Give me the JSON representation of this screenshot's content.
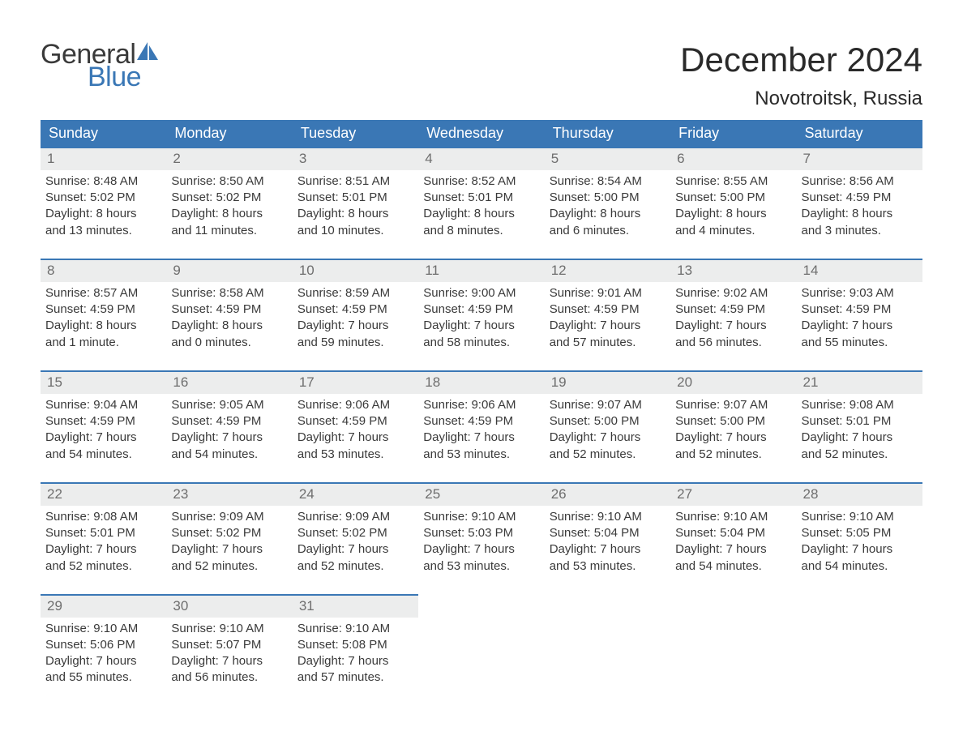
{
  "logo": {
    "top": "General",
    "bottom": "Blue",
    "sail_color": "#3a77b5"
  },
  "title": "December 2024",
  "location": "Novotroitsk, Russia",
  "colors": {
    "header_bg": "#3a77b5",
    "header_text": "#ffffff",
    "daynum_bg": "#eceded",
    "daynum_text": "#6e6e6e",
    "body_text": "#3a3a3a",
    "row_border": "#3a77b5",
    "page_bg": "#ffffff"
  },
  "day_headers": [
    "Sunday",
    "Monday",
    "Tuesday",
    "Wednesday",
    "Thursday",
    "Friday",
    "Saturday"
  ],
  "weeks": [
    [
      {
        "n": "1",
        "sunrise": "Sunrise: 8:48 AM",
        "sunset": "Sunset: 5:02 PM",
        "d1": "Daylight: 8 hours",
        "d2": "and 13 minutes."
      },
      {
        "n": "2",
        "sunrise": "Sunrise: 8:50 AM",
        "sunset": "Sunset: 5:02 PM",
        "d1": "Daylight: 8 hours",
        "d2": "and 11 minutes."
      },
      {
        "n": "3",
        "sunrise": "Sunrise: 8:51 AM",
        "sunset": "Sunset: 5:01 PM",
        "d1": "Daylight: 8 hours",
        "d2": "and 10 minutes."
      },
      {
        "n": "4",
        "sunrise": "Sunrise: 8:52 AM",
        "sunset": "Sunset: 5:01 PM",
        "d1": "Daylight: 8 hours",
        "d2": "and 8 minutes."
      },
      {
        "n": "5",
        "sunrise": "Sunrise: 8:54 AM",
        "sunset": "Sunset: 5:00 PM",
        "d1": "Daylight: 8 hours",
        "d2": "and 6 minutes."
      },
      {
        "n": "6",
        "sunrise": "Sunrise: 8:55 AM",
        "sunset": "Sunset: 5:00 PM",
        "d1": "Daylight: 8 hours",
        "d2": "and 4 minutes."
      },
      {
        "n": "7",
        "sunrise": "Sunrise: 8:56 AM",
        "sunset": "Sunset: 4:59 PM",
        "d1": "Daylight: 8 hours",
        "d2": "and 3 minutes."
      }
    ],
    [
      {
        "n": "8",
        "sunrise": "Sunrise: 8:57 AM",
        "sunset": "Sunset: 4:59 PM",
        "d1": "Daylight: 8 hours",
        "d2": "and 1 minute."
      },
      {
        "n": "9",
        "sunrise": "Sunrise: 8:58 AM",
        "sunset": "Sunset: 4:59 PM",
        "d1": "Daylight: 8 hours",
        "d2": "and 0 minutes."
      },
      {
        "n": "10",
        "sunrise": "Sunrise: 8:59 AM",
        "sunset": "Sunset: 4:59 PM",
        "d1": "Daylight: 7 hours",
        "d2": "and 59 minutes."
      },
      {
        "n": "11",
        "sunrise": "Sunrise: 9:00 AM",
        "sunset": "Sunset: 4:59 PM",
        "d1": "Daylight: 7 hours",
        "d2": "and 58 minutes."
      },
      {
        "n": "12",
        "sunrise": "Sunrise: 9:01 AM",
        "sunset": "Sunset: 4:59 PM",
        "d1": "Daylight: 7 hours",
        "d2": "and 57 minutes."
      },
      {
        "n": "13",
        "sunrise": "Sunrise: 9:02 AM",
        "sunset": "Sunset: 4:59 PM",
        "d1": "Daylight: 7 hours",
        "d2": "and 56 minutes."
      },
      {
        "n": "14",
        "sunrise": "Sunrise: 9:03 AM",
        "sunset": "Sunset: 4:59 PM",
        "d1": "Daylight: 7 hours",
        "d2": "and 55 minutes."
      }
    ],
    [
      {
        "n": "15",
        "sunrise": "Sunrise: 9:04 AM",
        "sunset": "Sunset: 4:59 PM",
        "d1": "Daylight: 7 hours",
        "d2": "and 54 minutes."
      },
      {
        "n": "16",
        "sunrise": "Sunrise: 9:05 AM",
        "sunset": "Sunset: 4:59 PM",
        "d1": "Daylight: 7 hours",
        "d2": "and 54 minutes."
      },
      {
        "n": "17",
        "sunrise": "Sunrise: 9:06 AM",
        "sunset": "Sunset: 4:59 PM",
        "d1": "Daylight: 7 hours",
        "d2": "and 53 minutes."
      },
      {
        "n": "18",
        "sunrise": "Sunrise: 9:06 AM",
        "sunset": "Sunset: 4:59 PM",
        "d1": "Daylight: 7 hours",
        "d2": "and 53 minutes."
      },
      {
        "n": "19",
        "sunrise": "Sunrise: 9:07 AM",
        "sunset": "Sunset: 5:00 PM",
        "d1": "Daylight: 7 hours",
        "d2": "and 52 minutes."
      },
      {
        "n": "20",
        "sunrise": "Sunrise: 9:07 AM",
        "sunset": "Sunset: 5:00 PM",
        "d1": "Daylight: 7 hours",
        "d2": "and 52 minutes."
      },
      {
        "n": "21",
        "sunrise": "Sunrise: 9:08 AM",
        "sunset": "Sunset: 5:01 PM",
        "d1": "Daylight: 7 hours",
        "d2": "and 52 minutes."
      }
    ],
    [
      {
        "n": "22",
        "sunrise": "Sunrise: 9:08 AM",
        "sunset": "Sunset: 5:01 PM",
        "d1": "Daylight: 7 hours",
        "d2": "and 52 minutes."
      },
      {
        "n": "23",
        "sunrise": "Sunrise: 9:09 AM",
        "sunset": "Sunset: 5:02 PM",
        "d1": "Daylight: 7 hours",
        "d2": "and 52 minutes."
      },
      {
        "n": "24",
        "sunrise": "Sunrise: 9:09 AM",
        "sunset": "Sunset: 5:02 PM",
        "d1": "Daylight: 7 hours",
        "d2": "and 52 minutes."
      },
      {
        "n": "25",
        "sunrise": "Sunrise: 9:10 AM",
        "sunset": "Sunset: 5:03 PM",
        "d1": "Daylight: 7 hours",
        "d2": "and 53 minutes."
      },
      {
        "n": "26",
        "sunrise": "Sunrise: 9:10 AM",
        "sunset": "Sunset: 5:04 PM",
        "d1": "Daylight: 7 hours",
        "d2": "and 53 minutes."
      },
      {
        "n": "27",
        "sunrise": "Sunrise: 9:10 AM",
        "sunset": "Sunset: 5:04 PM",
        "d1": "Daylight: 7 hours",
        "d2": "and 54 minutes."
      },
      {
        "n": "28",
        "sunrise": "Sunrise: 9:10 AM",
        "sunset": "Sunset: 5:05 PM",
        "d1": "Daylight: 7 hours",
        "d2": "and 54 minutes."
      }
    ],
    [
      {
        "n": "29",
        "sunrise": "Sunrise: 9:10 AM",
        "sunset": "Sunset: 5:06 PM",
        "d1": "Daylight: 7 hours",
        "d2": "and 55 minutes."
      },
      {
        "n": "30",
        "sunrise": "Sunrise: 9:10 AM",
        "sunset": "Sunset: 5:07 PM",
        "d1": "Daylight: 7 hours",
        "d2": "and 56 minutes."
      },
      {
        "n": "31",
        "sunrise": "Sunrise: 9:10 AM",
        "sunset": "Sunset: 5:08 PM",
        "d1": "Daylight: 7 hours",
        "d2": "and 57 minutes."
      },
      null,
      null,
      null,
      null
    ]
  ]
}
